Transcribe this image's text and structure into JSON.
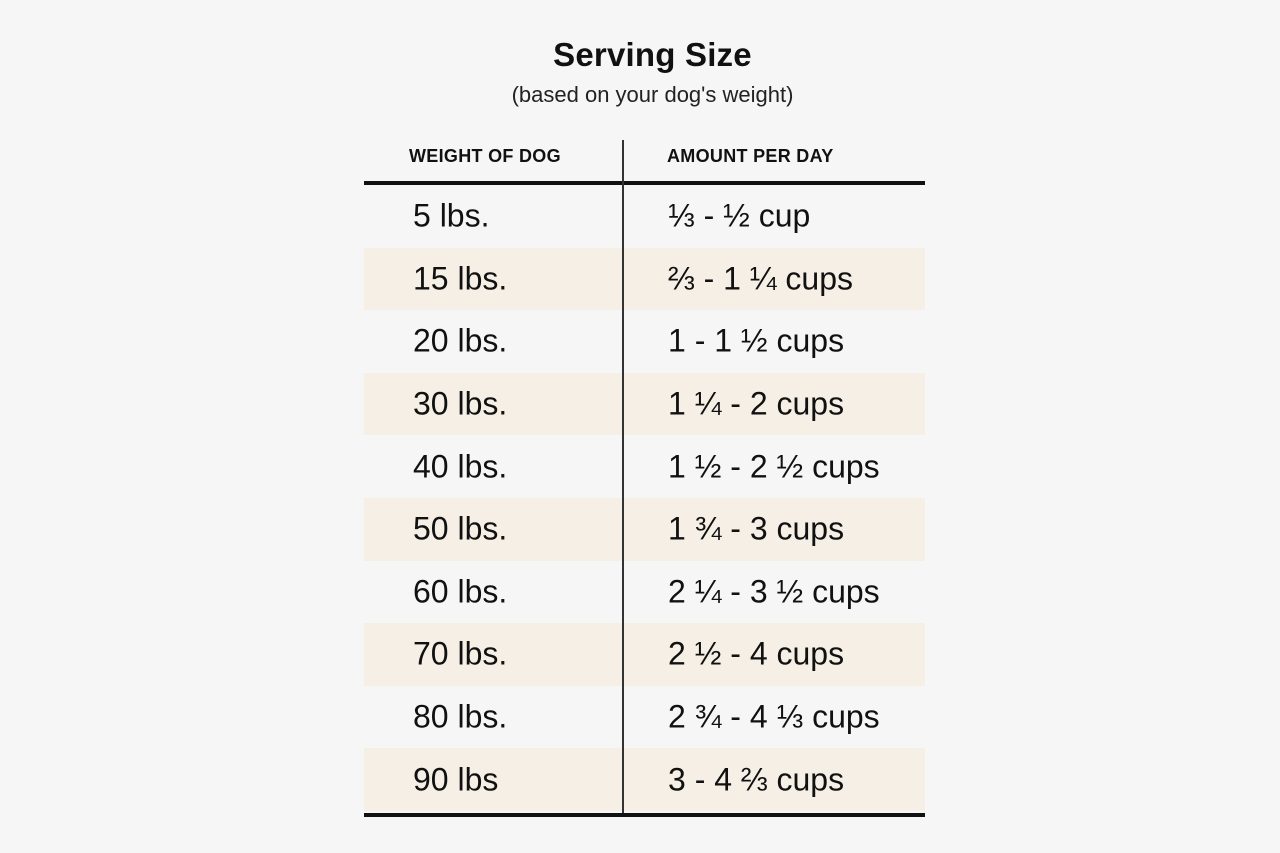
{
  "title": "Serving Size",
  "subtitle": "(based on your dog's weight)",
  "table": {
    "columns": [
      "WEIGHT OF DOG",
      "AMOUNT PER DAY"
    ],
    "rows": [
      {
        "weight": "5 lbs.",
        "amount": "⅓ - ½ cup"
      },
      {
        "weight": "15 lbs.",
        "amount": "⅔ - 1 ¼ cups"
      },
      {
        "weight": "20 lbs.",
        "amount": "1 - 1 ½ cups"
      },
      {
        "weight": "30 lbs.",
        "amount": "1 ¼ - 2 cups"
      },
      {
        "weight": "40 lbs.",
        "amount": "1 ½ - 2 ½ cups"
      },
      {
        "weight": "50 lbs.",
        "amount": "1 ¾ - 3 cups"
      },
      {
        "weight": "60 lbs.",
        "amount": "2 ¼ - 3 ½ cups"
      },
      {
        "weight": "70 lbs.",
        "amount": "2 ½ - 4 cups"
      },
      {
        "weight": "80 lbs.",
        "amount": "2 ¾ - 4 ⅓ cups"
      },
      {
        "weight": "90 lbs",
        "amount": "3 - 4 ⅔ cups"
      }
    ]
  },
  "colors": {
    "background": "#f6f6f7",
    "shaded_row": "#f5efe5",
    "rule": "#111111"
  }
}
